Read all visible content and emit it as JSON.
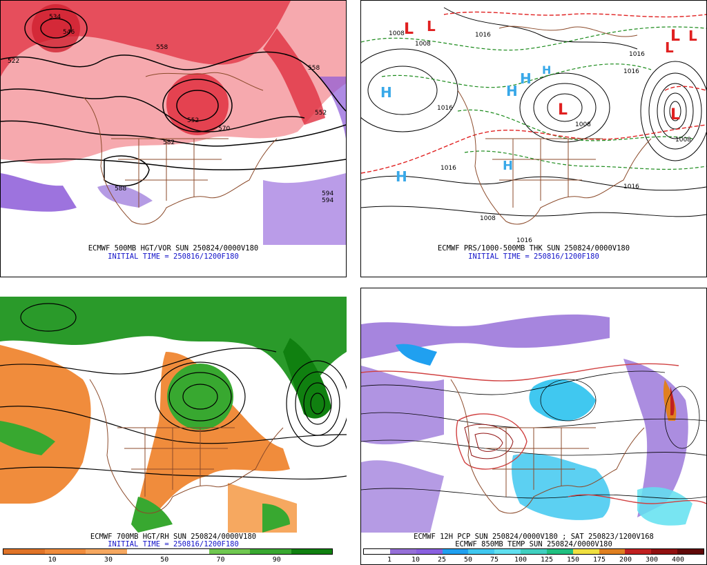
{
  "panels": {
    "top_left": {
      "caption": "ECMWF 500MB HGT/VOR SUN 250824/0000V180",
      "initial": "INITIAL TIME = 250816/1200F180",
      "contour_labels": [
        "534",
        "546",
        "558",
        "552",
        "522",
        "558",
        "570",
        "582",
        "588",
        "594",
        "594",
        "552"
      ]
    },
    "top_right": {
      "caption": "ECMWF PRS/1000-500MB THK SUN 250824/0000V180",
      "initial": "INITIAL TIME = 250816/1200F180",
      "highs": [
        "H",
        "H",
        "H",
        "H",
        "H",
        "H"
      ],
      "lows": [
        "L",
        "L",
        "L",
        "L",
        "L",
        "L",
        "L"
      ],
      "isobar_labels": [
        "1008",
        "1008",
        "1016",
        "1016",
        "1016",
        "1016",
        "1008",
        "1016",
        "1008",
        "1016",
        "1008",
        "1016"
      ]
    },
    "bottom_left": {
      "caption": "ECMWF 700MB HGT/RH SUN 250824/0000V180",
      "initial": "INITIAL TIME = 250816/1200F180",
      "legend_ticks": [
        "10",
        "30",
        "50",
        "70",
        "90"
      ],
      "legend_colors": [
        "#e07428",
        "#f08c3c",
        "#f6a860",
        "#ffffff",
        "#ffffff",
        "#70c850",
        "#38a830",
        "#108010"
      ]
    },
    "bottom_right": {
      "caption_line1": "ECMWF 12H PCP SUN 250824/0000V180 ; SAT 250823/1200V168",
      "caption_line2": "ECMWF 850MB TEMP SUN 250824/0000V180",
      "legend_ticks": [
        "1",
        "10",
        "25",
        "50",
        "75",
        "100",
        "125",
        "150",
        "175",
        "200",
        "300",
        "400"
      ],
      "legend_colors": [
        "#ffffff",
        "#9670d8",
        "#8a60e0",
        "#20a0f0",
        "#40c8f0",
        "#60e0f0",
        "#40d0c0",
        "#20c080",
        "#f0e040",
        "#e08020",
        "#c02020",
        "#901010",
        "#600808"
      ]
    }
  },
  "colors": {
    "vorticity_red": "#e03040",
    "vorticity_light": "#f49aa0",
    "vorticity_purple": "#8c5ad8",
    "coast_brown": "#8b4a2a",
    "thickness_green": "#1a8a1a",
    "thickness_red": "#e02020",
    "high_blue": "#38a8e8",
    "low_red": "#e02020",
    "rh_green": "#2a9a2a",
    "rh_orange": "#f08c3c",
    "pcp_purple": "#9670d8",
    "pcp_cyan": "#40c8f0",
    "temp_red": "#d04040"
  }
}
